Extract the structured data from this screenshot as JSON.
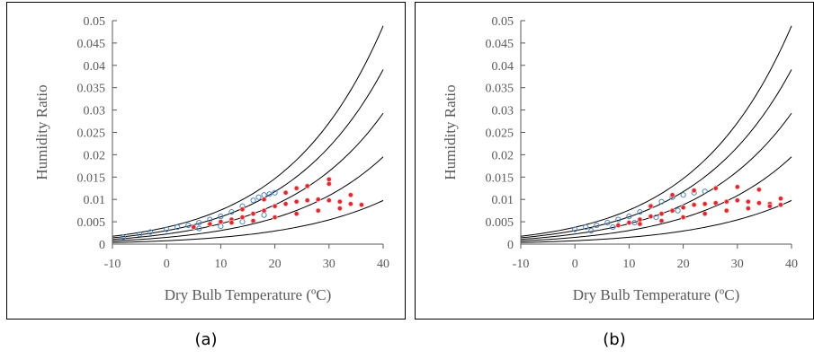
{
  "colors": {
    "saturation_curves": "#000000",
    "series_blue": "#4a86c6",
    "series_red_fill": "#e8242a",
    "series_red_edge": "#f7c7c9",
    "axis_text": "#595959"
  },
  "chart_data": [
    {
      "panel_label": "(a)",
      "type": "scatter",
      "title": "",
      "xlabel": "Dry Bulb Temperature (ºC)",
      "ylabel": "Humidity Ratio",
      "xlim": [
        -10,
        40
      ],
      "ylim": [
        0,
        0.05
      ],
      "x_ticks": [
        -10,
        0,
        10,
        20,
        30,
        40
      ],
      "y_ticks": [
        0,
        0.005,
        0.01,
        0.015,
        0.02,
        0.025,
        0.03,
        0.035,
        0.04,
        0.045,
        0.05
      ],
      "grid": false,
      "legend": "none",
      "background_curves": {
        "description_values": "relative humidity lines",
        "rh_levels": [
          0.2,
          0.4,
          0.6,
          0.8,
          1.0
        ]
      },
      "series": [
        {
          "marker": "circle-open",
          "color": "#4a86c6",
          "x": [
            -8,
            -5,
            -3,
            0,
            2,
            4,
            6,
            8,
            10,
            12,
            14,
            16,
            17,
            18,
            19,
            20,
            6,
            10,
            14,
            18
          ],
          "y": [
            0.0015,
            0.0022,
            0.0027,
            0.0033,
            0.0038,
            0.0042,
            0.0048,
            0.0055,
            0.0062,
            0.0072,
            0.0085,
            0.0098,
            0.0105,
            0.011,
            0.0112,
            0.0115,
            0.0035,
            0.004,
            0.005,
            0.0065
          ]
        },
        {
          "marker": "circle-filled",
          "color": "#e8242a",
          "x": [
            5,
            8,
            10,
            12,
            14,
            16,
            18,
            20,
            22,
            24,
            26,
            28,
            30,
            32,
            34,
            36,
            12,
            16,
            20,
            24,
            28,
            32,
            18,
            22,
            26,
            30,
            34,
            14,
            24,
            30
          ],
          "y": [
            0.0038,
            0.0045,
            0.005,
            0.0055,
            0.006,
            0.0068,
            0.0075,
            0.0085,
            0.009,
            0.0095,
            0.0098,
            0.01,
            0.0098,
            0.0095,
            0.009,
            0.0088,
            0.0048,
            0.0052,
            0.006,
            0.0068,
            0.0075,
            0.008,
            0.01,
            0.0115,
            0.013,
            0.0135,
            0.011,
            0.0078,
            0.0125,
            0.0145
          ]
        }
      ]
    },
    {
      "panel_label": "(b)",
      "type": "scatter",
      "title": "",
      "xlabel": "Dry Bulb Temperature (ºC)",
      "ylabel": "Humidity Ratio",
      "xlim": [
        -10,
        40
      ],
      "ylim": [
        0,
        0.05
      ],
      "x_ticks": [
        -10,
        0,
        10,
        20,
        30,
        40
      ],
      "y_ticks": [
        0,
        0.005,
        0.01,
        0.015,
        0.02,
        0.025,
        0.03,
        0.035,
        0.04,
        0.045,
        0.05
      ],
      "grid": false,
      "legend": "none",
      "background_curves": {
        "description_values": "relative humidity lines",
        "rh_levels": [
          0.2,
          0.4,
          0.6,
          0.8,
          1.0
        ]
      },
      "series": [
        {
          "marker": "circle-open",
          "color": "#4a86c6",
          "x": [
            0,
            2,
            4,
            6,
            8,
            10,
            12,
            14,
            16,
            18,
            20,
            22,
            24,
            3,
            7,
            11,
            15,
            19
          ],
          "y": [
            0.0033,
            0.0038,
            0.0042,
            0.0048,
            0.0055,
            0.0062,
            0.0072,
            0.0085,
            0.0095,
            0.0105,
            0.011,
            0.0115,
            0.0118,
            0.003,
            0.0038,
            0.0048,
            0.006,
            0.0075
          ]
        },
        {
          "marker": "circle-filled",
          "color": "#e8242a",
          "x": [
            8,
            10,
            12,
            14,
            16,
            18,
            20,
            22,
            24,
            26,
            28,
            30,
            32,
            34,
            36,
            38,
            12,
            16,
            20,
            24,
            28,
            32,
            36,
            18,
            22,
            26,
            30,
            34,
            14,
            38
          ],
          "y": [
            0.0042,
            0.0048,
            0.0055,
            0.0062,
            0.0068,
            0.0075,
            0.0082,
            0.0088,
            0.009,
            0.0092,
            0.0095,
            0.0098,
            0.0095,
            0.0092,
            0.009,
            0.0088,
            0.0045,
            0.0052,
            0.006,
            0.0068,
            0.0075,
            0.008,
            0.0085,
            0.011,
            0.012,
            0.0125,
            0.0128,
            0.0122,
            0.0085,
            0.0102
          ]
        }
      ]
    }
  ]
}
